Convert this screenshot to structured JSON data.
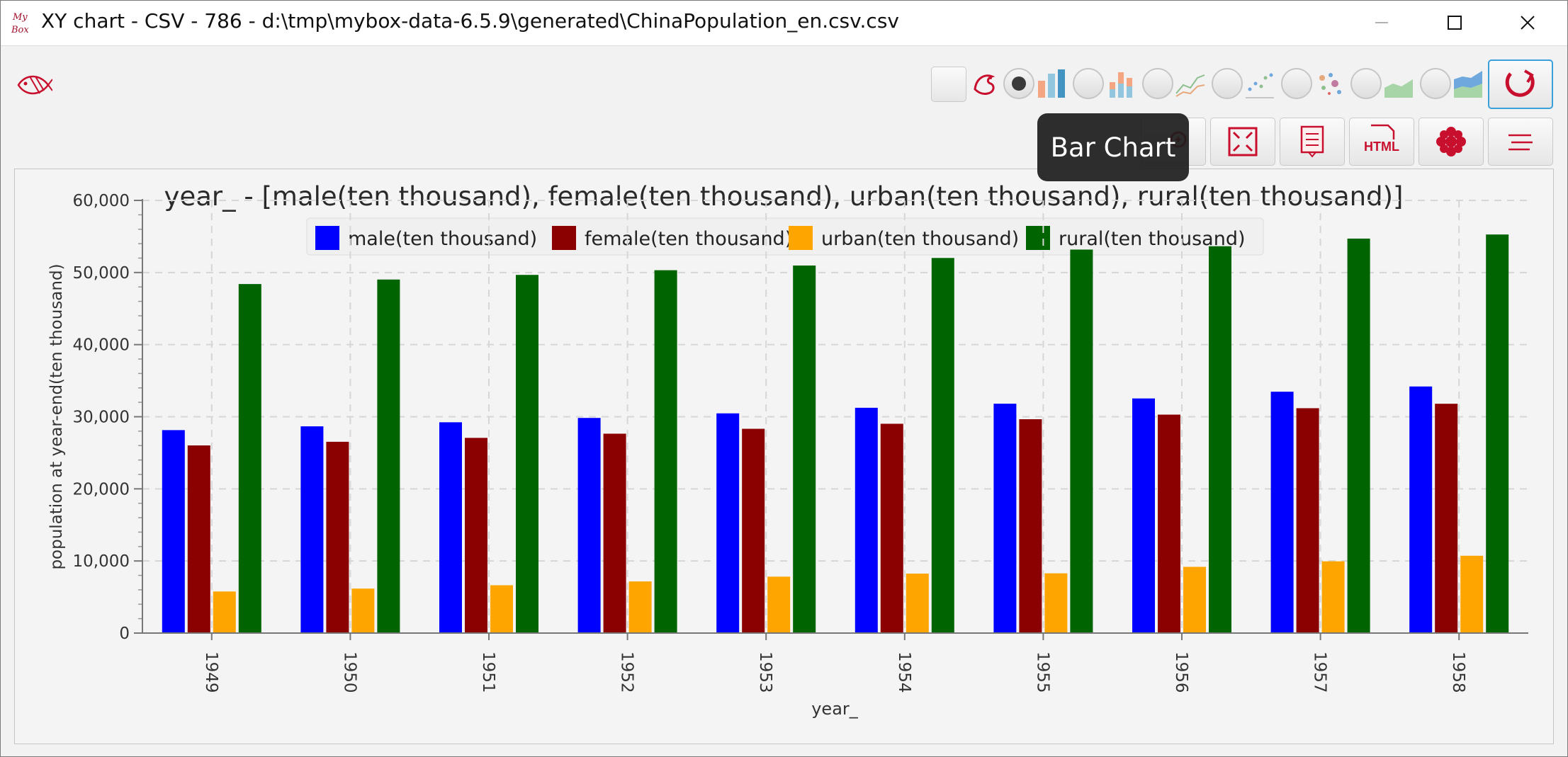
{
  "window": {
    "title": "XY chart - CSV - 786 - d:\\tmp\\mybox-data-6.5.9\\generated\\ChinaPopulation_en.csv.csv",
    "logo_text": "My Box"
  },
  "toolbar": {
    "chart_type_selected": "bar",
    "chart_types": [
      "bar",
      "stacked-bar",
      "line",
      "scatter",
      "bubble",
      "area",
      "stacked-area"
    ],
    "tooltip": "Bar Chart",
    "action_buttons": [
      "zoom-icon",
      "fit-icon",
      "data-icon",
      "html-icon",
      "style-icon",
      "menu-icon"
    ],
    "html_label": "HTML"
  },
  "colors": {
    "male": "#0000ff",
    "female": "#8b0000",
    "urban": "#ffa500",
    "rural": "#006400",
    "accent": "#c8102e"
  },
  "chart_data": {
    "type": "bar",
    "title": "year_ - [male(ten thousand), female(ten thousand), urban(ten thousand), rural(ten thousand)]",
    "xlabel": "year_",
    "ylabel": "population at year-end(ten thousand)",
    "categories": [
      "1949",
      "1950",
      "1951",
      "1952",
      "1953",
      "1954",
      "1955",
      "1956",
      "1957",
      "1958"
    ],
    "ylim": [
      0,
      60000
    ],
    "yticks": [
      "0",
      "10,000",
      "20,000",
      "30,000",
      "40,000",
      "50,000",
      "60,000"
    ],
    "ytick_values": [
      0,
      10000,
      20000,
      30000,
      40000,
      50000,
      60000
    ],
    "grid": true,
    "legend_position": "top",
    "series": [
      {
        "name": "male(ten thousand)",
        "color": "#0000ff",
        "values": [
          28145,
          28669,
          29231,
          29833,
          30468,
          31242,
          31809,
          32536,
          33469,
          34195
        ]
      },
      {
        "name": "female(ten thousand)",
        "color": "#8b0000",
        "values": [
          26022,
          26527,
          27069,
          27649,
          28328,
          29024,
          29656,
          30292,
          31184,
          31799
        ]
      },
      {
        "name": "urban(ten thousand)",
        "color": "#ffa500",
        "values": [
          5765,
          6169,
          6632,
          7163,
          7826,
          8249,
          8285,
          9185,
          9949,
          10721
        ]
      },
      {
        "name": "rural(ten thousand)",
        "color": "#006400",
        "values": [
          48402,
          49027,
          49668,
          50319,
          50970,
          52017,
          53180,
          53643,
          54704,
          55273
        ]
      }
    ]
  }
}
